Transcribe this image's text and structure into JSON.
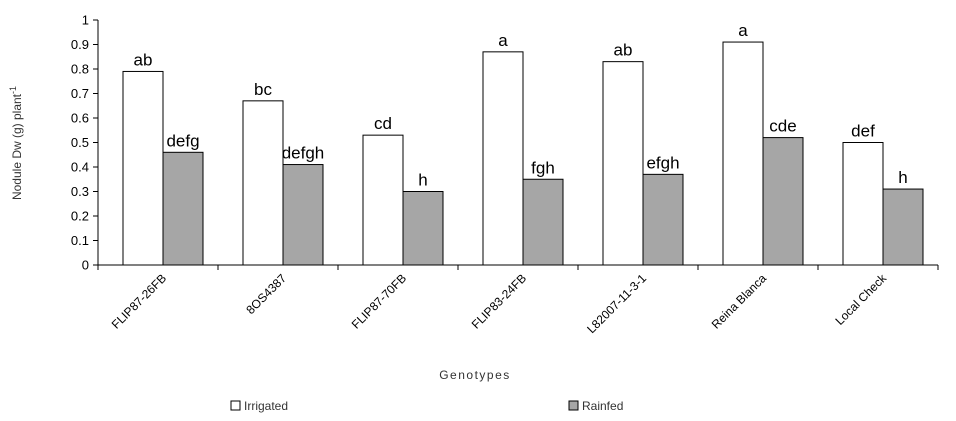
{
  "colors": {
    "irrigated": "#ffffff",
    "rainfed": "#a6a6a6",
    "outline": "#000000"
  },
  "chart_data": {
    "type": "bar",
    "xlabel": "Genotypes",
    "ylabel_main": "Nodule Dw (g) plant",
    "ylabel_sup": "-1",
    "ylim": [
      0,
      1
    ],
    "yticks": [
      "0",
      "0.1",
      "0.2",
      "0.3",
      "0.4",
      "0.5",
      "0.6",
      "0.7",
      "0.8",
      "0.9",
      "1"
    ],
    "categories": [
      "FLIP87-26FB",
      "8OS4387",
      "FLIP87-70FB",
      "FLIP83-24FB",
      "L82007-11-3-1",
      "Reina Blanca",
      "Local Check"
    ],
    "series": [
      {
        "name": "Irrigated",
        "values": [
          0.79,
          0.67,
          0.53,
          0.87,
          0.83,
          0.91,
          0.5
        ],
        "labels": [
          "ab",
          "bc",
          "cd",
          "a",
          "ab",
          "a",
          "def"
        ]
      },
      {
        "name": "Rainfed",
        "values": [
          0.46,
          0.41,
          0.3,
          0.35,
          0.37,
          0.52,
          0.31
        ],
        "labels": [
          "defg",
          "defgh",
          "h",
          "fgh",
          "efgh",
          "cde",
          "h"
        ]
      }
    ],
    "grid": false,
    "legend_position": "bottom"
  }
}
